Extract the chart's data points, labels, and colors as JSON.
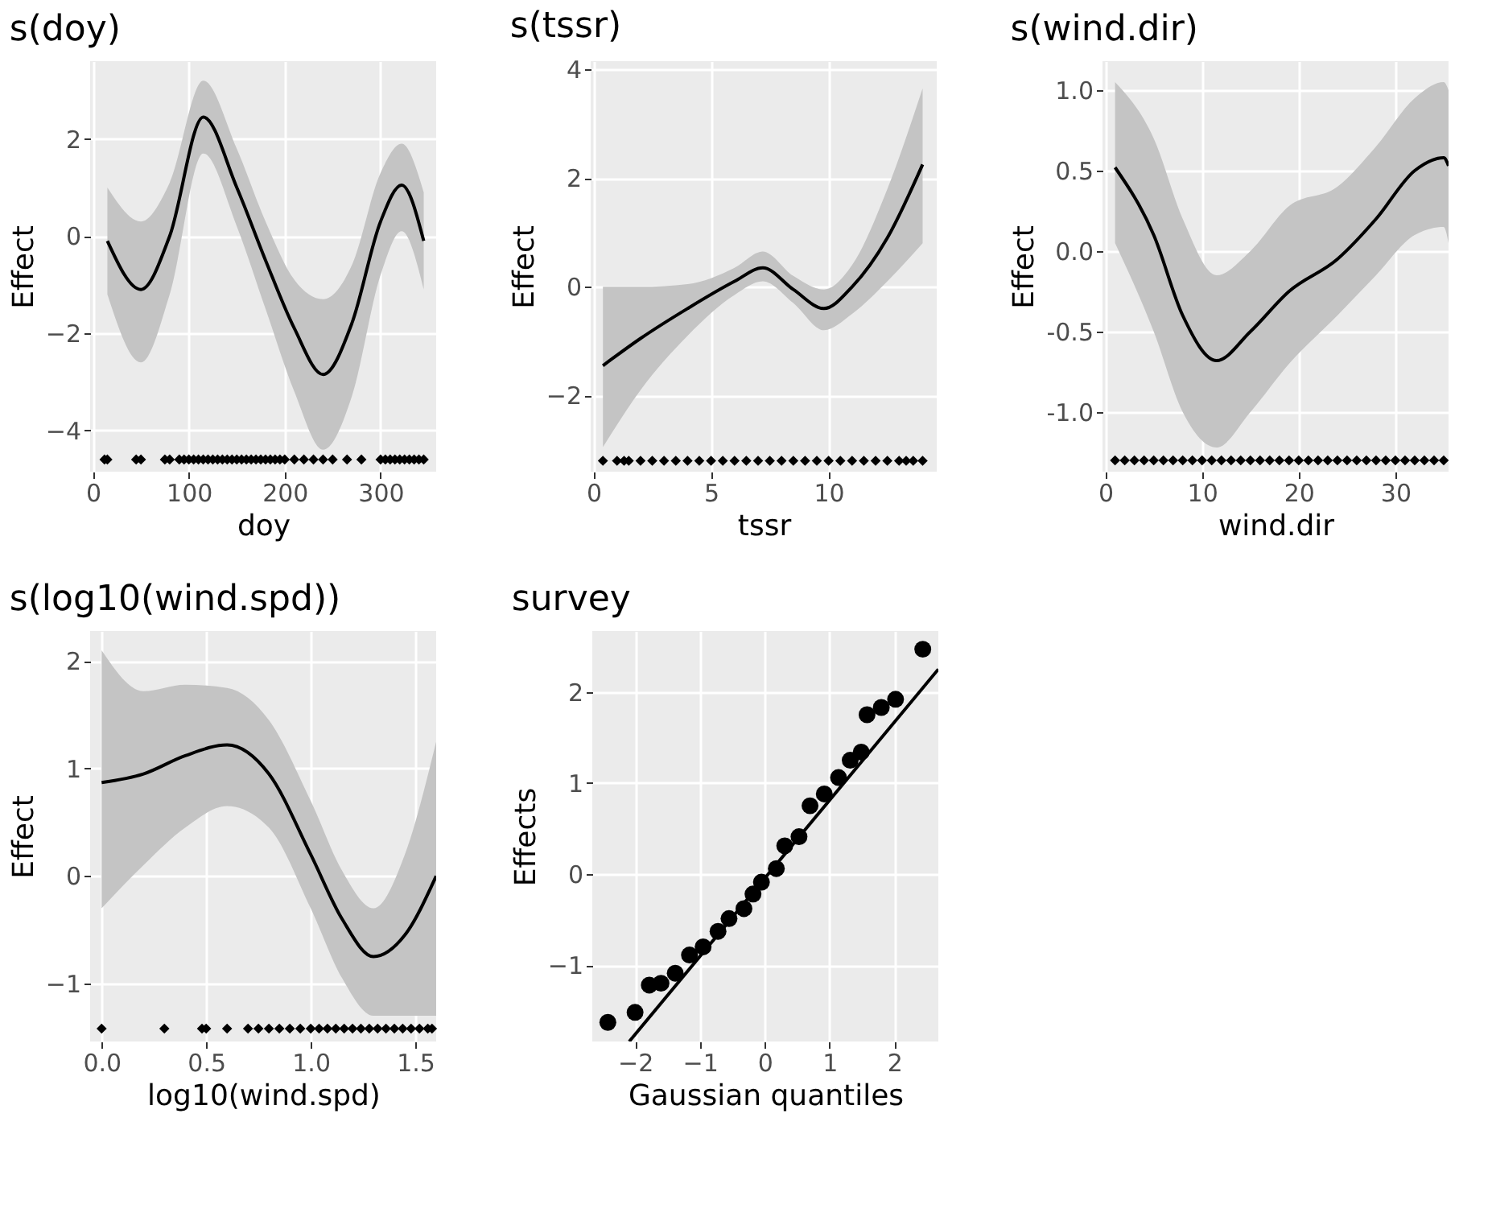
{
  "chart_data": [
    {
      "type": "line",
      "title": "s(doy)",
      "xlabel": "doy",
      "ylabel": "Effect",
      "xlim": [
        -3,
        358
      ],
      "ylim": [
        -4.85,
        3.6
      ],
      "xticks": [
        0,
        100,
        200,
        300
      ],
      "yticks": [
        -4,
        -2,
        0,
        2
      ],
      "grid": true,
      "series": [
        {
          "color": "#000000",
          "x": [
            15,
            50,
            80,
            115,
            150,
            180,
            210,
            240,
            270,
            300,
            322,
            345
          ],
          "values": [
            -0.1,
            -1.1,
            0.0,
            2.45,
            1.0,
            -0.5,
            -1.9,
            -2.85,
            -1.8,
            0.3,
            1.05,
            -0.1
          ],
          "lower": [
            -1.2,
            -2.6,
            -1.2,
            1.7,
            0.2,
            -1.5,
            -3.2,
            -4.4,
            -3.3,
            -0.8,
            0.1,
            -1.1
          ],
          "upper": [
            1.0,
            0.3,
            1.1,
            3.2,
            1.8,
            0.3,
            -0.9,
            -1.3,
            -0.6,
            1.3,
            1.9,
            0.9
          ]
        },
        {
          "type": "scatter",
          "color": "#000000",
          "marker": "diamond",
          "x": [
            12,
            15,
            45,
            50,
            75,
            80,
            90,
            95,
            100,
            105,
            110,
            115,
            120,
            125,
            130,
            135,
            140,
            145,
            150,
            155,
            160,
            165,
            170,
            175,
            180,
            185,
            190,
            195,
            200,
            210,
            220,
            230,
            240,
            250,
            265,
            280,
            300,
            305,
            310,
            315,
            320,
            325,
            330,
            335,
            340,
            345
          ],
          "values": [
            -4.6,
            -4.6,
            -4.6,
            -4.6,
            -4.6,
            -4.6,
            -4.6,
            -4.6,
            -4.6,
            -4.6,
            -4.6,
            -4.6,
            -4.6,
            -4.6,
            -4.6,
            -4.6,
            -4.6,
            -4.6,
            -4.6,
            -4.6,
            -4.6,
            -4.6,
            -4.6,
            -4.6,
            -4.6,
            -4.6,
            -4.6,
            -4.6,
            -4.6,
            -4.6,
            -4.6,
            -4.6,
            -4.6,
            -4.6,
            -4.6,
            -4.6,
            -4.6,
            -4.6,
            -4.6,
            -4.6,
            -4.6,
            -4.6,
            -4.6,
            -4.6,
            -4.6,
            -4.6
          ]
        }
      ]
    },
    {
      "type": "line",
      "title": "s(tssr)",
      "xlabel": "tssr",
      "ylabel": "Effect",
      "xlim": [
        -0.12,
        14.6
      ],
      "ylim": [
        -3.4,
        4.15
      ],
      "xticks": [
        0,
        5,
        10
      ],
      "yticks": [
        -2,
        0,
        2,
        4
      ],
      "grid": true,
      "series": [
        {
          "color": "#000000",
          "x": [
            0.4,
            2,
            4,
            6,
            7.2,
            8.5,
            9.8,
            11,
            12.5,
            14
          ],
          "values": [
            -1.45,
            -0.95,
            -0.4,
            0.1,
            0.35,
            -0.05,
            -0.4,
            0.0,
            0.9,
            2.25
          ],
          "lower": [
            -2.95,
            -1.9,
            -0.9,
            -0.15,
            0.1,
            -0.3,
            -0.8,
            -0.5,
            0.1,
            0.8
          ],
          "upper": [
            0.0,
            0.0,
            0.05,
            0.35,
            0.65,
            0.2,
            -0.05,
            0.4,
            1.8,
            3.65
          ]
        },
        {
          "type": "scatter",
          "color": "#000000",
          "marker": "diamond",
          "x": [
            0.4,
            1.0,
            1.3,
            1.5,
            2.0,
            2.5,
            3.0,
            3.5,
            4.0,
            4.5,
            5.0,
            5.5,
            6.0,
            6.5,
            7.0,
            7.5,
            8.0,
            8.5,
            9.0,
            9.5,
            10.0,
            10.5,
            11.0,
            11.5,
            12.0,
            12.5,
            13.0,
            13.3,
            13.6,
            14.0
          ],
          "values": [
            -3.2,
            -3.2,
            -3.2,
            -3.2,
            -3.2,
            -3.2,
            -3.2,
            -3.2,
            -3.2,
            -3.2,
            -3.2,
            -3.2,
            -3.2,
            -3.2,
            -3.2,
            -3.2,
            -3.2,
            -3.2,
            -3.2,
            -3.2,
            -3.2,
            -3.2,
            -3.2,
            -3.2,
            -3.2,
            -3.2,
            -3.2,
            -3.2,
            -3.2,
            -3.2
          ]
        }
      ]
    },
    {
      "type": "line",
      "title": "s(wind.dir)",
      "xlabel": "wind.dir",
      "ylabel": "Effect",
      "xlim": [
        -0.3,
        35.5
      ],
      "ylim": [
        -1.37,
        1.18
      ],
      "xticks": [
        0,
        10,
        20,
        30
      ],
      "yticks": [
        {
          "value": -1,
          "label": "-1.0"
        },
        {
          "value": -0.5,
          "label": "-0.5"
        },
        {
          "value": 0,
          "label": "0.0"
        },
        {
          "value": 0.5,
          "label": "0.5"
        },
        {
          "value": 1,
          "label": "1.0"
        }
      ],
      "grid": true,
      "series": [
        {
          "color": "#000000",
          "x": [
            1,
            5,
            8,
            11.5,
            15,
            19,
            24,
            28,
            32,
            35,
            35.5
          ],
          "values": [
            0.52,
            0.1,
            -0.4,
            -0.68,
            -0.5,
            -0.25,
            -0.05,
            0.2,
            0.5,
            0.58,
            0.53
          ],
          "lower": [
            0.05,
            -0.5,
            -1.0,
            -1.22,
            -1.0,
            -0.7,
            -0.4,
            -0.15,
            0.1,
            0.15,
            0.05
          ],
          "upper": [
            1.05,
            0.7,
            0.2,
            -0.15,
            0.0,
            0.28,
            0.4,
            0.65,
            0.95,
            1.05,
            1.0
          ]
        },
        {
          "type": "scatter",
          "color": "#000000",
          "marker": "diamond",
          "x": [
            1,
            2,
            3,
            4,
            5,
            6,
            7,
            8,
            9,
            10,
            11,
            12,
            13,
            14,
            15,
            16,
            17,
            18,
            19,
            20,
            21,
            22,
            23,
            24,
            25,
            26,
            27,
            28,
            29,
            30,
            31,
            32,
            33,
            34,
            35
          ],
          "values": [
            -1.3,
            -1.3,
            -1.3,
            -1.3,
            -1.3,
            -1.3,
            -1.3,
            -1.3,
            -1.3,
            -1.3,
            -1.3,
            -1.3,
            -1.3,
            -1.3,
            -1.3,
            -1.3,
            -1.3,
            -1.3,
            -1.3,
            -1.3,
            -1.3,
            -1.3,
            -1.3,
            -1.3,
            -1.3,
            -1.3,
            -1.3,
            -1.3,
            -1.3,
            -1.3,
            -1.3,
            -1.3,
            -1.3,
            -1.3,
            -1.3
          ]
        }
      ]
    },
    {
      "type": "line",
      "title": "s(log10(wind.spd))",
      "xlabel": "log10(wind.spd)",
      "ylabel": "Effect",
      "xlim": [
        -0.055,
        1.6
      ],
      "ylim": [
        -1.54,
        2.28
      ],
      "xticks": [
        {
          "value": 0,
          "label": "0.0"
        },
        {
          "value": 0.5,
          "label": "0.5"
        },
        {
          "value": 1,
          "label": "1.0"
        },
        {
          "value": 1.5,
          "label": "1.5"
        }
      ],
      "yticks": [
        -1,
        0,
        1,
        2
      ],
      "grid": true,
      "series": [
        {
          "color": "#000000",
          "x": [
            0,
            0.2,
            0.4,
            0.6,
            0.8,
            1.0,
            1.15,
            1.3,
            1.45,
            1.6
          ],
          "values": [
            0.87,
            0.95,
            1.12,
            1.22,
            0.95,
            0.2,
            -0.4,
            -0.75,
            -0.55,
            0.0
          ],
          "lower": [
            -0.3,
            0.1,
            0.45,
            0.65,
            0.45,
            -0.3,
            -0.95,
            -1.3,
            -1.3,
            -1.3
          ],
          "upper": [
            2.1,
            1.72,
            1.78,
            1.75,
            1.45,
            0.7,
            0.05,
            -0.3,
            0.2,
            1.25
          ]
        },
        {
          "type": "scatter",
          "color": "#000000",
          "marker": "diamond",
          "x": [
            0,
            0.3,
            0.48,
            0.5,
            0.6,
            0.7,
            0.75,
            0.8,
            0.85,
            0.9,
            0.95,
            1.0,
            1.04,
            1.08,
            1.12,
            1.16,
            1.2,
            1.24,
            1.28,
            1.32,
            1.36,
            1.4,
            1.44,
            1.48,
            1.52,
            1.56,
            1.58
          ],
          "values": [
            -1.42,
            -1.42,
            -1.42,
            -1.42,
            -1.42,
            -1.42,
            -1.42,
            -1.42,
            -1.42,
            -1.42,
            -1.42,
            -1.42,
            -1.42,
            -1.42,
            -1.42,
            -1.42,
            -1.42,
            -1.42,
            -1.42,
            -1.42,
            -1.42,
            -1.42,
            -1.42,
            -1.42,
            -1.42,
            -1.42,
            -1.42
          ]
        }
      ]
    },
    {
      "type": "scatter",
      "title": "survey",
      "xlabel": "Gaussian quantiles",
      "ylabel": "Effects",
      "xlim": [
        -2.66,
        2.68
      ],
      "ylim": [
        -1.84,
        2.67
      ],
      "xticks": [
        -2,
        -1,
        0,
        1,
        2
      ],
      "yticks": [
        -1,
        0,
        1,
        2
      ],
      "grid": true,
      "series": [
        {
          "color": "#000000",
          "marker": "circle",
          "x": [
            -2.42,
            -2.0,
            -1.78,
            -1.6,
            -1.38,
            -1.16,
            -0.95,
            -0.72,
            -0.55,
            -0.32,
            -0.18,
            -0.05,
            0.18,
            0.31,
            0.53,
            0.7,
            0.92,
            1.14,
            1.32,
            1.49,
            1.58,
            1.8,
            2.02,
            2.44
          ],
          "values": [
            -1.63,
            -1.52,
            -1.22,
            -1.2,
            -1.09,
            -0.89,
            -0.8,
            -0.63,
            -0.49,
            -0.38,
            -0.22,
            -0.09,
            0.06,
            0.31,
            0.41,
            0.75,
            0.88,
            1.06,
            1.25,
            1.34,
            1.75,
            1.83,
            1.92,
            2.47
          ]
        },
        {
          "type": "line",
          "color": "#000000",
          "x": [
            -2.09,
            2.68
          ],
          "values": [
            -1.84,
            2.25
          ]
        }
      ]
    }
  ]
}
